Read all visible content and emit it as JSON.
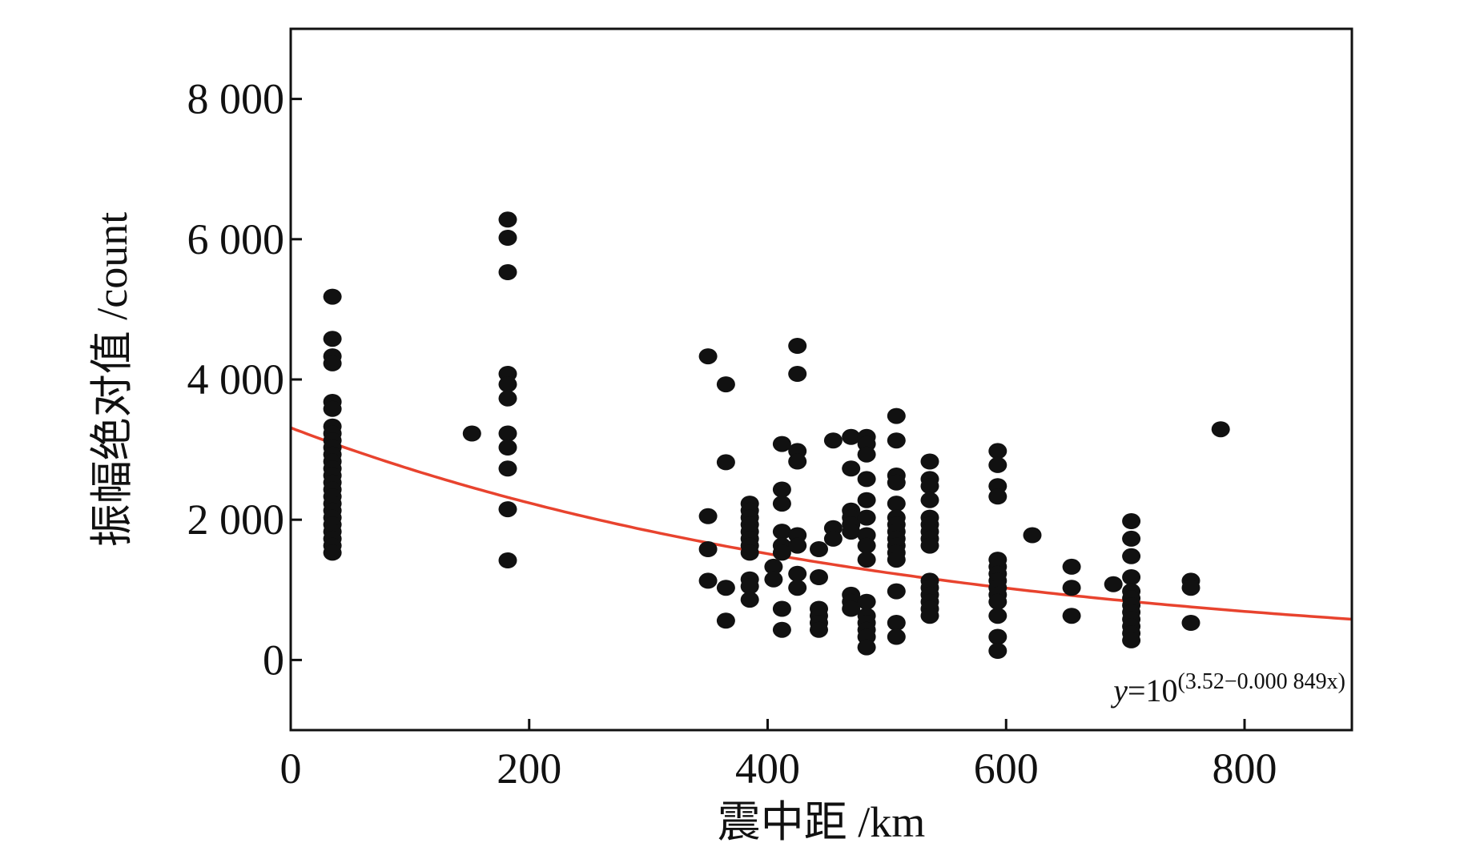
{
  "chart_data": {
    "type": "scatter",
    "xlabel": "震中距 /km",
    "ylabel": "振幅绝对值 /count",
    "xlim": [
      0,
      890
    ],
    "ylim": [
      -1000,
      9000
    ],
    "x_ticks": [
      0,
      200,
      400,
      600,
      800
    ],
    "x_tick_labels": [
      "0",
      "200",
      "400",
      "600",
      "800"
    ],
    "y_ticks": [
      0,
      2000,
      4000,
      6000,
      8000
    ],
    "y_tick_labels": [
      "0",
      "2 000",
      "4 000",
      "6 000",
      "8 000"
    ],
    "grid": false,
    "point_color": "#111111",
    "fit_color": "#e8432e",
    "fit_curve": {
      "intercept": 3.52,
      "slope": 0.000849
    },
    "equation": {
      "prefix": "y",
      "equals": "=10",
      "exponent": "(3.52−0.000 849x)"
    },
    "points": [
      [
        35,
        5180
      ],
      [
        35,
        4580
      ],
      [
        35,
        4330
      ],
      [
        35,
        4230
      ],
      [
        35,
        3680
      ],
      [
        35,
        3580
      ],
      [
        35,
        3330
      ],
      [
        35,
        3230
      ],
      [
        35,
        3130
      ],
      [
        35,
        3030
      ],
      [
        35,
        2930
      ],
      [
        35,
        2830
      ],
      [
        35,
        2730
      ],
      [
        35,
        2630
      ],
      [
        35,
        2530
      ],
      [
        35,
        2430
      ],
      [
        35,
        2330
      ],
      [
        35,
        2230
      ],
      [
        35,
        2130
      ],
      [
        35,
        2030
      ],
      [
        35,
        1930
      ],
      [
        35,
        1830
      ],
      [
        35,
        1730
      ],
      [
        35,
        1630
      ],
      [
        35,
        1530
      ],
      [
        152,
        3230
      ],
      [
        182,
        6280
      ],
      [
        182,
        6020
      ],
      [
        182,
        5530
      ],
      [
        182,
        4080
      ],
      [
        182,
        3930
      ],
      [
        182,
        3730
      ],
      [
        182,
        3230
      ],
      [
        182,
        3030
      ],
      [
        182,
        2730
      ],
      [
        182,
        2150
      ],
      [
        182,
        1420
      ],
      [
        350,
        4330
      ],
      [
        350,
        2050
      ],
      [
        350,
        1580
      ],
      [
        350,
        1130
      ],
      [
        365,
        3930
      ],
      [
        365,
        2820
      ],
      [
        365,
        1030
      ],
      [
        365,
        560
      ],
      [
        385,
        2230
      ],
      [
        385,
        2130
      ],
      [
        385,
        2030
      ],
      [
        385,
        1930
      ],
      [
        385,
        1830
      ],
      [
        385,
        1730
      ],
      [
        385,
        1630
      ],
      [
        385,
        1530
      ],
      [
        385,
        1150
      ],
      [
        385,
        1050
      ],
      [
        385,
        860
      ],
      [
        405,
        1330
      ],
      [
        405,
        1150
      ],
      [
        412,
        3080
      ],
      [
        412,
        2430
      ],
      [
        412,
        2230
      ],
      [
        412,
        1830
      ],
      [
        412,
        1630
      ],
      [
        412,
        1530
      ],
      [
        412,
        730
      ],
      [
        412,
        430
      ],
      [
        425,
        4480
      ],
      [
        425,
        4080
      ],
      [
        425,
        2980
      ],
      [
        425,
        2830
      ],
      [
        425,
        1780
      ],
      [
        425,
        1630
      ],
      [
        425,
        1230
      ],
      [
        425,
        1030
      ],
      [
        443,
        1580
      ],
      [
        443,
        1180
      ],
      [
        443,
        730
      ],
      [
        443,
        630
      ],
      [
        443,
        530
      ],
      [
        443,
        430
      ],
      [
        455,
        3130
      ],
      [
        455,
        1880
      ],
      [
        455,
        1730
      ],
      [
        470,
        3180
      ],
      [
        470,
        2730
      ],
      [
        470,
        2130
      ],
      [
        470,
        2030
      ],
      [
        470,
        1930
      ],
      [
        470,
        1830
      ],
      [
        470,
        930
      ],
      [
        470,
        830
      ],
      [
        470,
        730
      ],
      [
        483,
        3180
      ],
      [
        483,
        3080
      ],
      [
        483,
        2930
      ],
      [
        483,
        2580
      ],
      [
        483,
        2280
      ],
      [
        483,
        2030
      ],
      [
        483,
        1780
      ],
      [
        483,
        1630
      ],
      [
        483,
        1430
      ],
      [
        483,
        830
      ],
      [
        483,
        630
      ],
      [
        483,
        530
      ],
      [
        483,
        430
      ],
      [
        483,
        330
      ],
      [
        483,
        180
      ],
      [
        508,
        3480
      ],
      [
        508,
        3130
      ],
      [
        508,
        2630
      ],
      [
        508,
        2530
      ],
      [
        508,
        2230
      ],
      [
        508,
        2030
      ],
      [
        508,
        1930
      ],
      [
        508,
        1830
      ],
      [
        508,
        1730
      ],
      [
        508,
        1630
      ],
      [
        508,
        1530
      ],
      [
        508,
        1430
      ],
      [
        508,
        980
      ],
      [
        508,
        530
      ],
      [
        508,
        330
      ],
      [
        536,
        2830
      ],
      [
        536,
        2580
      ],
      [
        536,
        2480
      ],
      [
        536,
        2280
      ],
      [
        536,
        2030
      ],
      [
        536,
        1930
      ],
      [
        536,
        1830
      ],
      [
        536,
        1730
      ],
      [
        536,
        1630
      ],
      [
        536,
        1130
      ],
      [
        536,
        1030
      ],
      [
        536,
        930
      ],
      [
        536,
        830
      ],
      [
        536,
        730
      ],
      [
        536,
        630
      ],
      [
        593,
        2980
      ],
      [
        593,
        2780
      ],
      [
        593,
        2480
      ],
      [
        593,
        2330
      ],
      [
        593,
        1430
      ],
      [
        593,
        1330
      ],
      [
        593,
        1230
      ],
      [
        593,
        1130
      ],
      [
        593,
        1030
      ],
      [
        593,
        930
      ],
      [
        593,
        830
      ],
      [
        593,
        630
      ],
      [
        593,
        330
      ],
      [
        593,
        130
      ],
      [
        622,
        1780
      ],
      [
        655,
        1330
      ],
      [
        655,
        1030
      ],
      [
        655,
        630
      ],
      [
        690,
        1080
      ],
      [
        705,
        1980
      ],
      [
        705,
        1730
      ],
      [
        705,
        1480
      ],
      [
        705,
        1180
      ],
      [
        705,
        980
      ],
      [
        705,
        880
      ],
      [
        705,
        780
      ],
      [
        705,
        680
      ],
      [
        705,
        580
      ],
      [
        705,
        480
      ],
      [
        705,
        380
      ],
      [
        705,
        280
      ],
      [
        755,
        1130
      ],
      [
        755,
        1030
      ],
      [
        755,
        530
      ],
      [
        780,
        3290
      ]
    ]
  }
}
